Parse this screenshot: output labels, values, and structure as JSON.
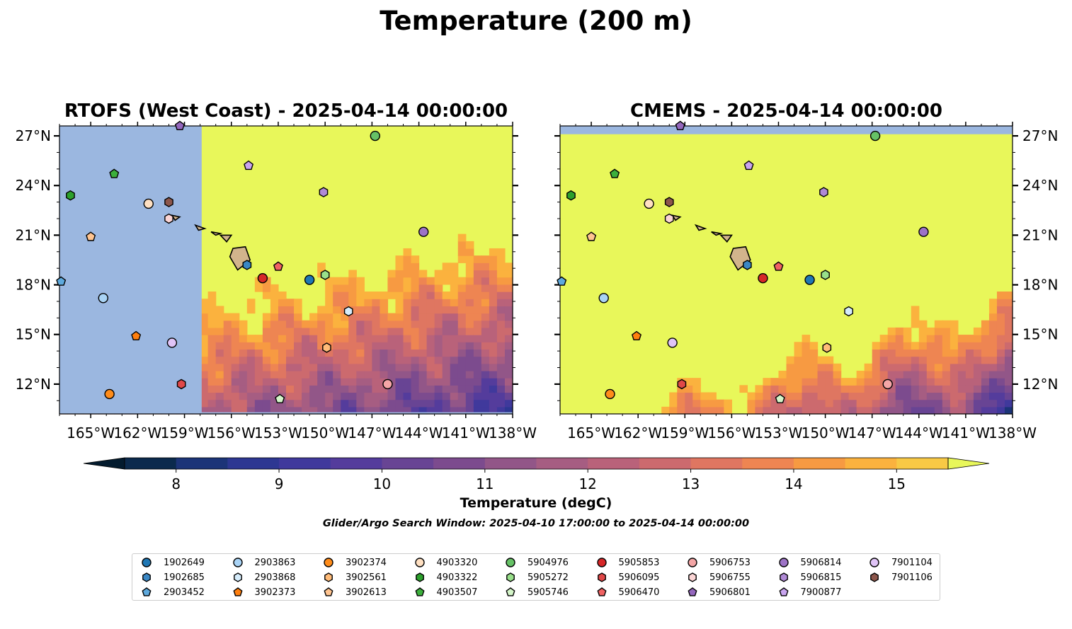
{
  "title": "Temperature (200 m)",
  "panels": [
    {
      "title": "RTOFS (West Coast) - 2025-04-14 00:00:00",
      "name": "rtofs"
    },
    {
      "title": "CMEMS - 2025-04-14 00:00:00",
      "name": "cmems"
    }
  ],
  "colors": {
    "land_mask": "#9bb7e0",
    "island_fill": "#d2b48c",
    "warm": "#e8f75a"
  },
  "chart_data": {
    "type": "heatmap",
    "lon_ticks": [
      "165°W",
      "162°W",
      "159°W",
      "156°W",
      "153°W",
      "150°W",
      "147°W",
      "144°W",
      "141°W",
      "138°W"
    ],
    "lat_ticks": [
      "27°N",
      "24°N",
      "21°N",
      "18°N",
      "15°N",
      "12°N"
    ],
    "lon_range": [
      -167,
      -138
    ],
    "lat_range": [
      10.2,
      27.6
    ],
    "colorbar": {
      "ticks": [
        "8",
        "9",
        "10",
        "11",
        "12",
        "13",
        "14",
        "15"
      ],
      "range": [
        7.5,
        15.5
      ],
      "step": 0.5,
      "extend": "both",
      "colors": [
        "#031b2e",
        "#0b2a4d",
        "#1c3478",
        "#2d3792",
        "#40399c",
        "#543c9c",
        "#684494",
        "#7c4b8e",
        "#925688",
        "#a65d82",
        "#b9627a",
        "#cc6a6e",
        "#df7661",
        "#ee8552",
        "#f79a42",
        "#fbb23e",
        "#f8c945",
        "#f1e250"
      ],
      "label": "Temperature (degC)"
    }
  },
  "window_note": "Glider/Argo Search Window: 2025-04-10 17:00:00 to 2025-04-14 00:00:00",
  "floats": [
    {
      "id": "1902649",
      "marker": "circle",
      "color": "#1f77b4",
      "lon": -151.0,
      "lat": 18.3
    },
    {
      "id": "1902685",
      "marker": "hexagon",
      "color": "#3a87c4",
      "lon": -155.0,
      "lat": 19.2
    },
    {
      "id": "2903452",
      "marker": "pentagon",
      "color": "#5ea9dd",
      "lon": -166.9,
      "lat": 18.2
    },
    {
      "id": "2903863",
      "marker": "circle",
      "color": "#a9d3f5",
      "lon": -164.2,
      "lat": 17.2
    },
    {
      "id": "2903868",
      "marker": "hexagon",
      "color": "#d5ecfb",
      "lon": -148.5,
      "lat": 16.4
    },
    {
      "id": "3902373",
      "marker": "pentagon",
      "color": "#ff7f0e",
      "lon": -162.1,
      "lat": 14.9
    },
    {
      "id": "3902374",
      "marker": "circle",
      "color": "#ff8c1a",
      "lon": -163.8,
      "lat": 11.4
    },
    {
      "id": "3902561",
      "marker": "hexagon",
      "color": "#ffbb78",
      "lon": -149.9,
      "lat": 14.2
    },
    {
      "id": "3902613",
      "marker": "pentagon",
      "color": "#ffc490",
      "lon": -165.0,
      "lat": 20.9
    },
    {
      "id": "4903320",
      "marker": "circle",
      "color": "#ffe0c2",
      "lon": -161.3,
      "lat": 22.9
    },
    {
      "id": "4903322",
      "marker": "hexagon",
      "color": "#2ca02c",
      "lon": -166.3,
      "lat": 23.4
    },
    {
      "id": "4903507",
      "marker": "pentagon",
      "color": "#3cb03c",
      "lon": -163.5,
      "lat": 24.7
    },
    {
      "id": "5904976",
      "marker": "circle",
      "color": "#66c266",
      "lon": -146.8,
      "lat": 27.0
    },
    {
      "id": "5905272",
      "marker": "hexagon",
      "color": "#98df8a",
      "lon": -150.0,
      "lat": 18.6
    },
    {
      "id": "5905746",
      "marker": "pentagon",
      "color": "#d4f5c9",
      "lon": -152.9,
      "lat": 11.1
    },
    {
      "id": "5905853",
      "marker": "circle",
      "color": "#d62728",
      "lon": -154.0,
      "lat": 18.4
    },
    {
      "id": "5906095",
      "marker": "hexagon",
      "color": "#e04848",
      "lon": -159.2,
      "lat": 12.0
    },
    {
      "id": "5906470",
      "marker": "pentagon",
      "color": "#f06262",
      "lon": -153.0,
      "lat": 19.1
    },
    {
      "id": "5906753",
      "marker": "circle",
      "color": "#f4a6a6",
      "lon": -146.0,
      "lat": 12.0
    },
    {
      "id": "5906755",
      "marker": "hexagon",
      "color": "#fbd5d5",
      "lon": -160.0,
      "lat": 22.0
    },
    {
      "id": "5906801",
      "marker": "pentagon",
      "color": "#9467bd",
      "lon": -159.3,
      "lat": 27.6
    },
    {
      "id": "5906814",
      "marker": "circle",
      "color": "#9d73c6",
      "lon": -143.7,
      "lat": 21.2
    },
    {
      "id": "5906815",
      "marker": "hexagon",
      "color": "#b08ad6",
      "lon": -150.1,
      "lat": 23.6
    },
    {
      "id": "7900877",
      "marker": "pentagon",
      "color": "#c9a5ef",
      "lon": -154.9,
      "lat": 25.2
    },
    {
      "id": "7901104",
      "marker": "circle",
      "color": "#e0c4f7",
      "lon": -159.8,
      "lat": 14.5
    },
    {
      "id": "7901106",
      "marker": "hexagon",
      "color": "#8c564b",
      "lon": -160.0,
      "lat": 23.0
    }
  ]
}
